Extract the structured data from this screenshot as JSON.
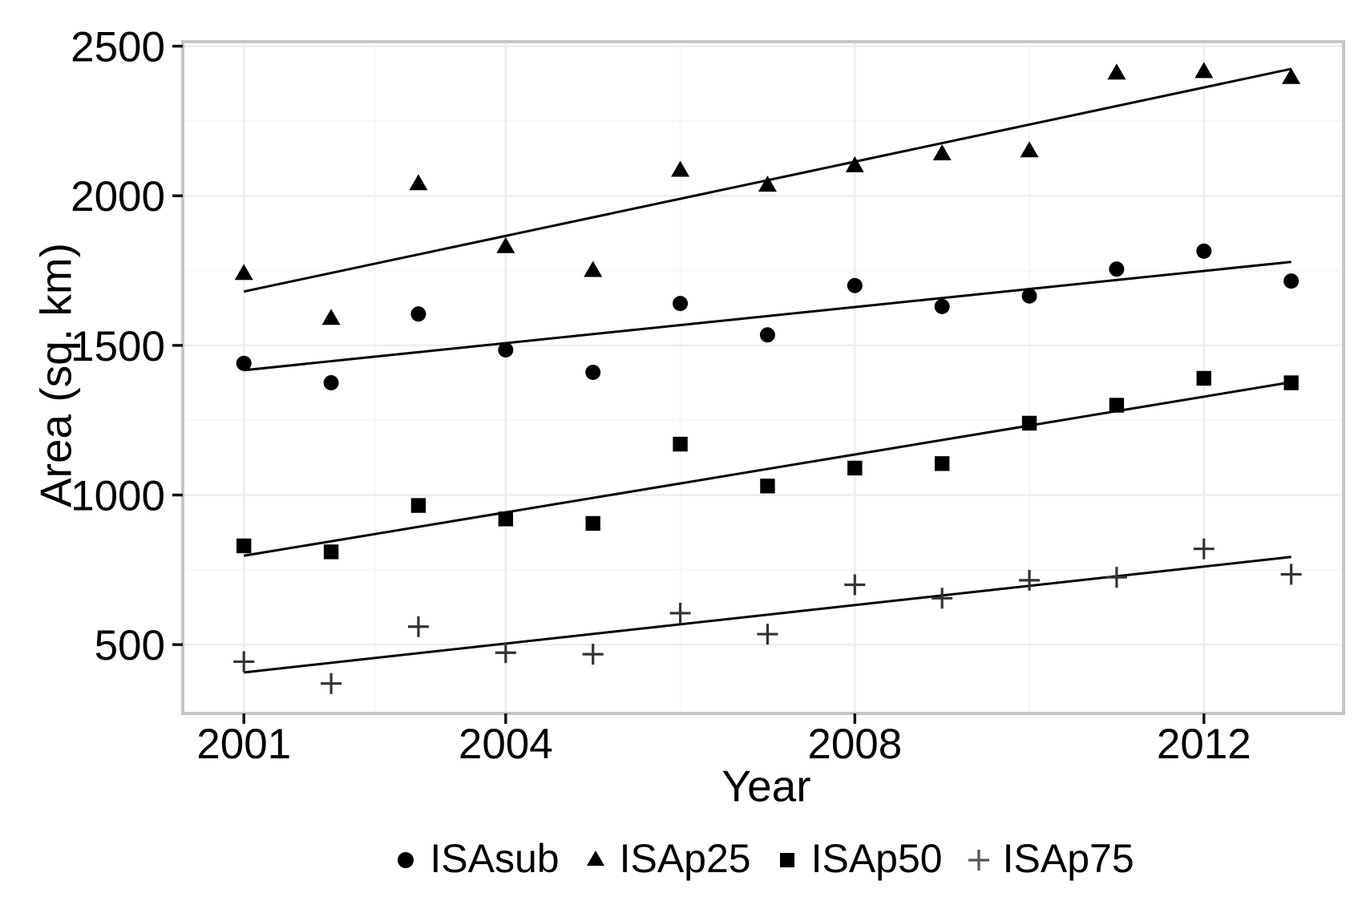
{
  "chart_data": {
    "type": "scatter",
    "title": "",
    "xlabel": "Year",
    "ylabel": "Area (sq. km)",
    "x": [
      2001,
      2002,
      2003,
      2004,
      2005,
      2006,
      2007,
      2008,
      2009,
      2010,
      2011,
      2012,
      2013
    ],
    "xlim": [
      2000.3,
      2013.6
    ],
    "ylim": [
      270,
      2515
    ],
    "x_ticks": [
      2001,
      2004,
      2008,
      2012
    ],
    "y_ticks": [
      500,
      1000,
      1500,
      2000,
      2500
    ],
    "x_minor_gridlines": [
      2002.5,
      2006,
      2010
    ],
    "y_minor_gridlines": [
      750,
      1250,
      1750,
      2250
    ],
    "grid": true,
    "legend_position": "bottom-center",
    "series": [
      {
        "name": "ISAsub",
        "marker": "circle",
        "color": "#000000",
        "values": [
          1440,
          1375,
          1605,
          1485,
          1410,
          1640,
          1535,
          1700,
          1630,
          1665,
          1755,
          1815,
          1715
        ],
        "trend_line": {
          "x_start": 2001,
          "y_start": 1417,
          "x_end": 2013,
          "y_end": 1779
        }
      },
      {
        "name": "ISAp25",
        "marker": "triangle",
        "color": "#000000",
        "values": [
          1740,
          1590,
          2040,
          1830,
          1750,
          2085,
          2035,
          2100,
          2140,
          2150,
          2410,
          2415,
          2395
        ],
        "trend_line": {
          "x_start": 2001,
          "y_start": 1680,
          "x_end": 2013,
          "y_end": 2424
        }
      },
      {
        "name": "ISAp50",
        "marker": "square",
        "color": "#000000",
        "values": [
          830,
          810,
          965,
          920,
          905,
          1170,
          1030,
          1090,
          1105,
          1240,
          1300,
          1390,
          1375
        ],
        "trend_line": {
          "x_start": 2001,
          "y_start": 797,
          "x_end": 2013,
          "y_end": 1377
        }
      },
      {
        "name": "ISAp75",
        "marker": "plus",
        "color": "#000000",
        "values": [
          443,
          370,
          560,
          473,
          468,
          605,
          535,
          700,
          655,
          715,
          725,
          820,
          735
        ],
        "trend_line": {
          "x_start": 2001,
          "y_start": 407,
          "x_end": 2013,
          "y_end": 793
        }
      }
    ],
    "colors": {
      "foreground": "#000000",
      "panel_border": "#c6c6c6",
      "grid_major": "#ededed",
      "grid_minor": "#f6f6f6"
    }
  },
  "figure": {
    "legend": [
      {
        "marker": "circle",
        "label": "ISAsub"
      },
      {
        "marker": "triangle",
        "label": "ISAp25"
      },
      {
        "marker": "square",
        "label": "ISAp50"
      },
      {
        "marker": "plus",
        "label": "ISAp75"
      }
    ]
  }
}
